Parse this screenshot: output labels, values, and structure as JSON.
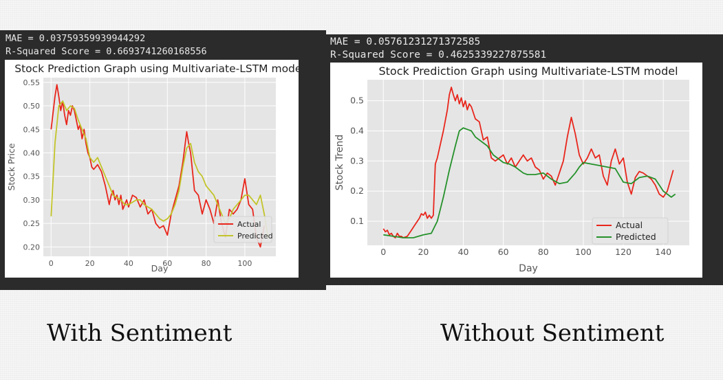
{
  "captions": {
    "left": "With Sentiment",
    "right": "Without Sentiment"
  },
  "colors": {
    "actual": "#e8251b",
    "predicted_left": "#c2c429",
    "predicted_right": "#24912a",
    "plot_bg": "#e5e5e5",
    "grid": "#ffffff"
  },
  "charts": [
    {
      "mae_text": "MAE = 0.03759359939944292",
      "r2_text": "R-Squared Score = 0.6693741260168556",
      "chart_data": {
        "type": "line",
        "title": "Stock Prediction Graph using Multivariate-LSTM model",
        "xlabel": "Day",
        "ylabel": "Stock Price",
        "xlim": [
          -4,
          116
        ],
        "ylim": [
          0.18,
          0.56
        ],
        "xticks": [
          0,
          20,
          40,
          60,
          80,
          100
        ],
        "yticks": [
          0.2,
          0.25,
          0.3,
          0.35,
          0.4,
          0.45,
          0.5,
          0.55
        ],
        "grid": true,
        "legend": "lower-right",
        "series": [
          {
            "name": "Actual",
            "color": "#e8251b",
            "x": [
              0,
              2,
              3,
              4,
              5,
              6,
              7,
              8,
              9,
              10,
              11,
              12,
              13,
              14,
              15,
              16,
              17,
              18,
              19,
              20,
              21,
              22,
              24,
              26,
              28,
              30,
              31,
              32,
              33,
              34,
              35,
              36,
              37,
              38,
              39,
              40,
              42,
              44,
              46,
              48,
              50,
              52,
              54,
              56,
              58,
              60,
              62,
              64,
              66,
              68,
              70,
              71,
              72,
              74,
              76,
              78,
              80,
              82,
              84,
              86,
              88,
              90,
              92,
              94,
              96,
              98,
              100,
              102,
              104,
              106,
              108,
              110
            ],
            "y": [
              0.45,
              0.52,
              0.545,
              0.52,
              0.49,
              0.51,
              0.48,
              0.46,
              0.49,
              0.48,
              0.5,
              0.49,
              0.47,
              0.45,
              0.46,
              0.43,
              0.45,
              0.42,
              0.4,
              0.39,
              0.37,
              0.365,
              0.375,
              0.36,
              0.33,
              0.29,
              0.31,
              0.32,
              0.3,
              0.31,
              0.29,
              0.31,
              0.28,
              0.29,
              0.3,
              0.285,
              0.31,
              0.305,
              0.285,
              0.3,
              0.27,
              0.28,
              0.25,
              0.24,
              0.245,
              0.225,
              0.27,
              0.3,
              0.33,
              0.38,
              0.445,
              0.42,
              0.4,
              0.32,
              0.31,
              0.27,
              0.3,
              0.28,
              0.25,
              0.3,
              0.25,
              0.22,
              0.28,
              0.27,
              0.28,
              0.3,
              0.345,
              0.29,
              0.28,
              0.22,
              0.2,
              0.245
            ]
          },
          {
            "name": "Predicted",
            "color": "#c2c429",
            "x": [
              0,
              2,
              4,
              6,
              8,
              10,
              12,
              14,
              16,
              18,
              20,
              22,
              24,
              26,
              28,
              30,
              32,
              34,
              36,
              38,
              40,
              42,
              44,
              46,
              48,
              50,
              52,
              54,
              56,
              58,
              60,
              62,
              64,
              66,
              68,
              70,
              72,
              74,
              76,
              78,
              80,
              82,
              84,
              86,
              88,
              90,
              92,
              94,
              96,
              98,
              100,
              102,
              104,
              106,
              108,
              110,
              112
            ],
            "y": [
              0.265,
              0.42,
              0.5,
              0.51,
              0.49,
              0.5,
              0.495,
              0.47,
              0.45,
              0.43,
              0.39,
              0.38,
              0.39,
              0.37,
              0.35,
              0.33,
              0.31,
              0.305,
              0.3,
              0.29,
              0.29,
              0.295,
              0.3,
              0.3,
              0.29,
              0.285,
              0.28,
              0.27,
              0.26,
              0.255,
              0.26,
              0.27,
              0.29,
              0.32,
              0.37,
              0.41,
              0.42,
              0.38,
              0.36,
              0.35,
              0.33,
              0.32,
              0.31,
              0.29,
              0.27,
              0.25,
              0.26,
              0.28,
              0.29,
              0.3,
              0.31,
              0.31,
              0.3,
              0.29,
              0.31,
              0.27,
              0.22
            ]
          }
        ]
      }
    },
    {
      "mae_text": "MAE = 0.05761231271372585",
      "r2_text": "R-Squared Score = 0.4625339227875581",
      "chart_data": {
        "type": "line",
        "title": "Stock Prediction Graph using Multivariate-LSTM model",
        "xlabel": "Day",
        "ylabel": "Stock Trend",
        "xlim": [
          -8,
          153
        ],
        "ylim": [
          0.02,
          0.57
        ],
        "xticks": [
          0,
          20,
          40,
          60,
          80,
          100,
          120,
          140
        ],
        "yticks": [
          0.1,
          0.2,
          0.3,
          0.4,
          0.5
        ],
        "grid": true,
        "legend": "lower-right",
        "series": [
          {
            "name": "Actual",
            "color": "#e8251b",
            "x": [
              0,
              1,
              2,
              3,
              4,
              5,
              6,
              7,
              8,
              9,
              10,
              12,
              14,
              16,
              18,
              19,
              20,
              21,
              22,
              23,
              24,
              25,
              26,
              27,
              28,
              30,
              32,
              33,
              34,
              35,
              36,
              37,
              38,
              39,
              40,
              41,
              42,
              43,
              44,
              46,
              48,
              50,
              52,
              54,
              56,
              58,
              60,
              62,
              64,
              66,
              68,
              70,
              72,
              74,
              76,
              78,
              80,
              82,
              84,
              86,
              88,
              90,
              92,
              94,
              96,
              98,
              100,
              102,
              104,
              106,
              108,
              110,
              112,
              114,
              116,
              118,
              120,
              122,
              124,
              126,
              128,
              130,
              132,
              134,
              136,
              138,
              140,
              142,
              145
            ],
            "y": [
              0.075,
              0.065,
              0.07,
              0.055,
              0.06,
              0.05,
              0.045,
              0.06,
              0.05,
              0.05,
              0.045,
              0.05,
              0.07,
              0.09,
              0.11,
              0.125,
              0.12,
              0.13,
              0.11,
              0.12,
              0.11,
              0.12,
              0.29,
              0.31,
              0.34,
              0.4,
              0.47,
              0.52,
              0.545,
              0.52,
              0.5,
              0.52,
              0.49,
              0.51,
              0.48,
              0.5,
              0.47,
              0.49,
              0.48,
              0.44,
              0.43,
              0.37,
              0.38,
              0.31,
              0.3,
              0.31,
              0.32,
              0.29,
              0.31,
              0.28,
              0.3,
              0.32,
              0.3,
              0.31,
              0.28,
              0.27,
              0.24,
              0.26,
              0.25,
              0.22,
              0.26,
              0.3,
              0.38,
              0.445,
              0.39,
              0.32,
              0.29,
              0.31,
              0.34,
              0.31,
              0.32,
              0.25,
              0.22,
              0.3,
              0.34,
              0.29,
              0.31,
              0.23,
              0.19,
              0.245,
              0.265,
              0.26,
              0.25,
              0.24,
              0.22,
              0.19,
              0.18,
              0.2,
              0.27
            ]
          },
          {
            "name": "Predicted",
            "color": "#24912a",
            "x": [
              0,
              5,
              10,
              15,
              20,
              24,
              27,
              30,
              33,
              36,
              38,
              40,
              42,
              44,
              46,
              48,
              50,
              52,
              55,
              58,
              60,
              63,
              66,
              68,
              70,
              72,
              76,
              80,
              84,
              88,
              92,
              96,
              98,
              100,
              104,
              108,
              112,
              116,
              120,
              124,
              128,
              132,
              136,
              138,
              140,
              142,
              144,
              146
            ],
            "y": [
              0.055,
              0.05,
              0.045,
              0.045,
              0.055,
              0.06,
              0.1,
              0.18,
              0.27,
              0.35,
              0.4,
              0.41,
              0.405,
              0.4,
              0.38,
              0.37,
              0.36,
              0.35,
              0.32,
              0.305,
              0.295,
              0.29,
              0.28,
              0.27,
              0.26,
              0.255,
              0.255,
              0.26,
              0.24,
              0.225,
              0.23,
              0.26,
              0.28,
              0.295,
              0.29,
              0.285,
              0.28,
              0.275,
              0.23,
              0.225,
              0.245,
              0.25,
              0.24,
              0.22,
              0.2,
              0.19,
              0.18,
              0.19
            ]
          }
        ]
      }
    }
  ]
}
